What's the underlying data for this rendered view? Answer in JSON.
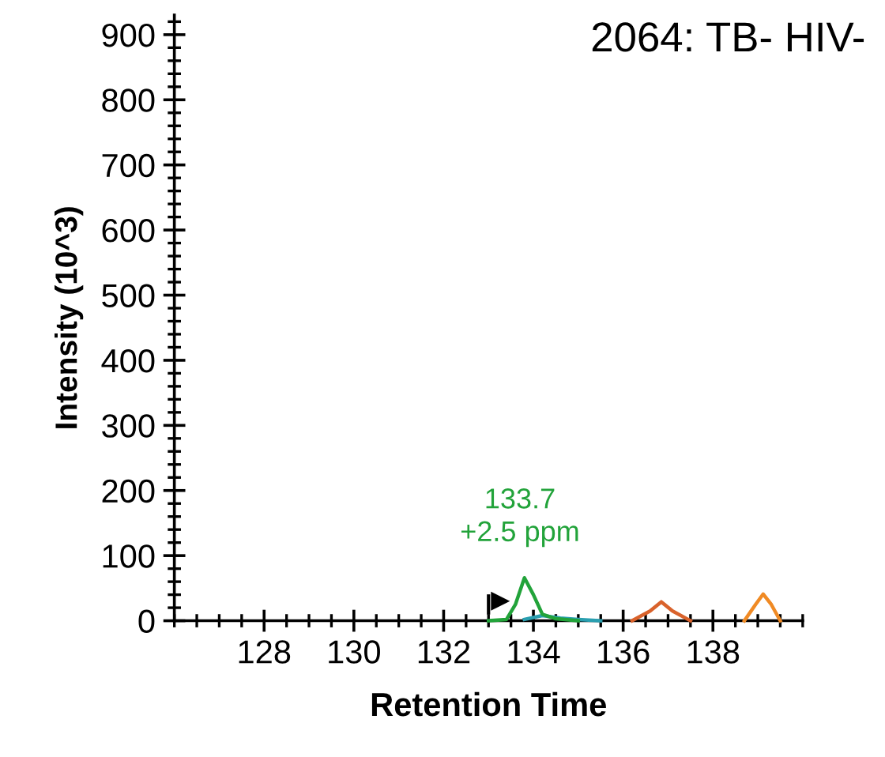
{
  "chart_data": {
    "type": "line",
    "title": "2064: TB- HIV-",
    "xlabel": "Retention Time",
    "ylabel": "Intensity (10^3)",
    "xlim": [
      126,
      140
    ],
    "xticks": [
      128,
      130,
      132,
      134,
      136,
      138
    ],
    "ylim": [
      0,
      930
    ],
    "yticks": [
      0,
      100,
      200,
      300,
      400,
      500,
      600,
      700,
      800,
      900
    ],
    "grid": false,
    "marker": "none",
    "line_style": "solid",
    "series": [
      {
        "color": "#2a9fb0",
        "x": [
          133.8,
          134.2,
          134.6,
          135.0,
          135.5
        ],
        "values": [
          2,
          8,
          4,
          2,
          0
        ]
      },
      {
        "color": "#22a33a",
        "x": [
          133.0,
          133.4,
          133.6,
          133.8,
          134.0,
          134.2,
          134.5,
          135.0
        ],
        "values": [
          0,
          2,
          25,
          66,
          40,
          10,
          3,
          0
        ]
      },
      {
        "color": "#d9622b",
        "x": [
          136.2,
          136.6,
          136.85,
          137.1,
          137.5
        ],
        "values": [
          0,
          15,
          29,
          15,
          0
        ]
      },
      {
        "color": "#f08a24",
        "x": [
          138.7,
          138.95,
          139.12,
          139.3,
          139.5
        ],
        "values": [
          0,
          25,
          41,
          25,
          0
        ]
      }
    ],
    "annotations": [
      {
        "text": "133.7\n+2.5 ppm",
        "x": 133.7,
        "y": 66
      }
    ]
  }
}
